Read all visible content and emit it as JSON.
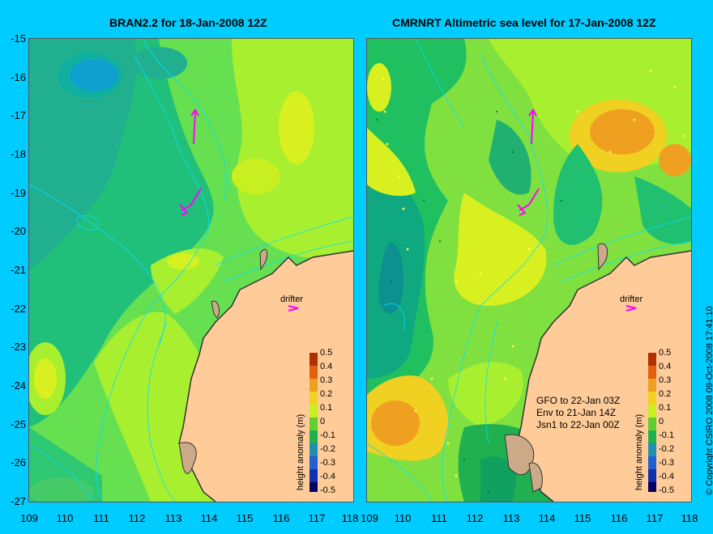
{
  "left_panel": {
    "title": "BRAN2.2 for 18-Jan-2008 12Z"
  },
  "right_panel": {
    "title": "CMRNRT Altimetric sea level  for 17-Jan-2008 12Z",
    "notes": [
      "GFO to 22-Jan 03Z",
      "Env to 21-Jan 14Z",
      "Jsn1 to 22-Jan 00Z"
    ]
  },
  "y_axis_labels": [
    "-15",
    "-16",
    "-17",
    "-18",
    "-19",
    "-20",
    "-21",
    "-22",
    "-23",
    "-24",
    "-25",
    "-26",
    "-27"
  ],
  "x_axis_labels": [
    "109",
    "110",
    "111",
    "112",
    "113",
    "114",
    "115",
    "116",
    "117",
    "118"
  ],
  "colorbar": {
    "title": "height anomaly (m)",
    "labels": [
      "0.5",
      "0.4",
      "0.3",
      "0.2",
      "0.1",
      "0",
      "-0.1",
      "-0.2",
      "-0.3",
      "-0.4",
      "-0.5"
    ],
    "colors": [
      "#b03000",
      "#e06010",
      "#f0a020",
      "#f0d020",
      "#c8f020",
      "#60d030",
      "#20b050",
      "#2090b0",
      "#2060d0",
      "#1030b0",
      "#080060"
    ]
  },
  "drifter_label": "drifter",
  "copyright": "© Copyright CSIRO 2008   09-Oct-2008 17:41:10",
  "colors": {
    "background": "#00ccff",
    "land": "#ffcc99",
    "drifter_track": "#ff00ff"
  }
}
